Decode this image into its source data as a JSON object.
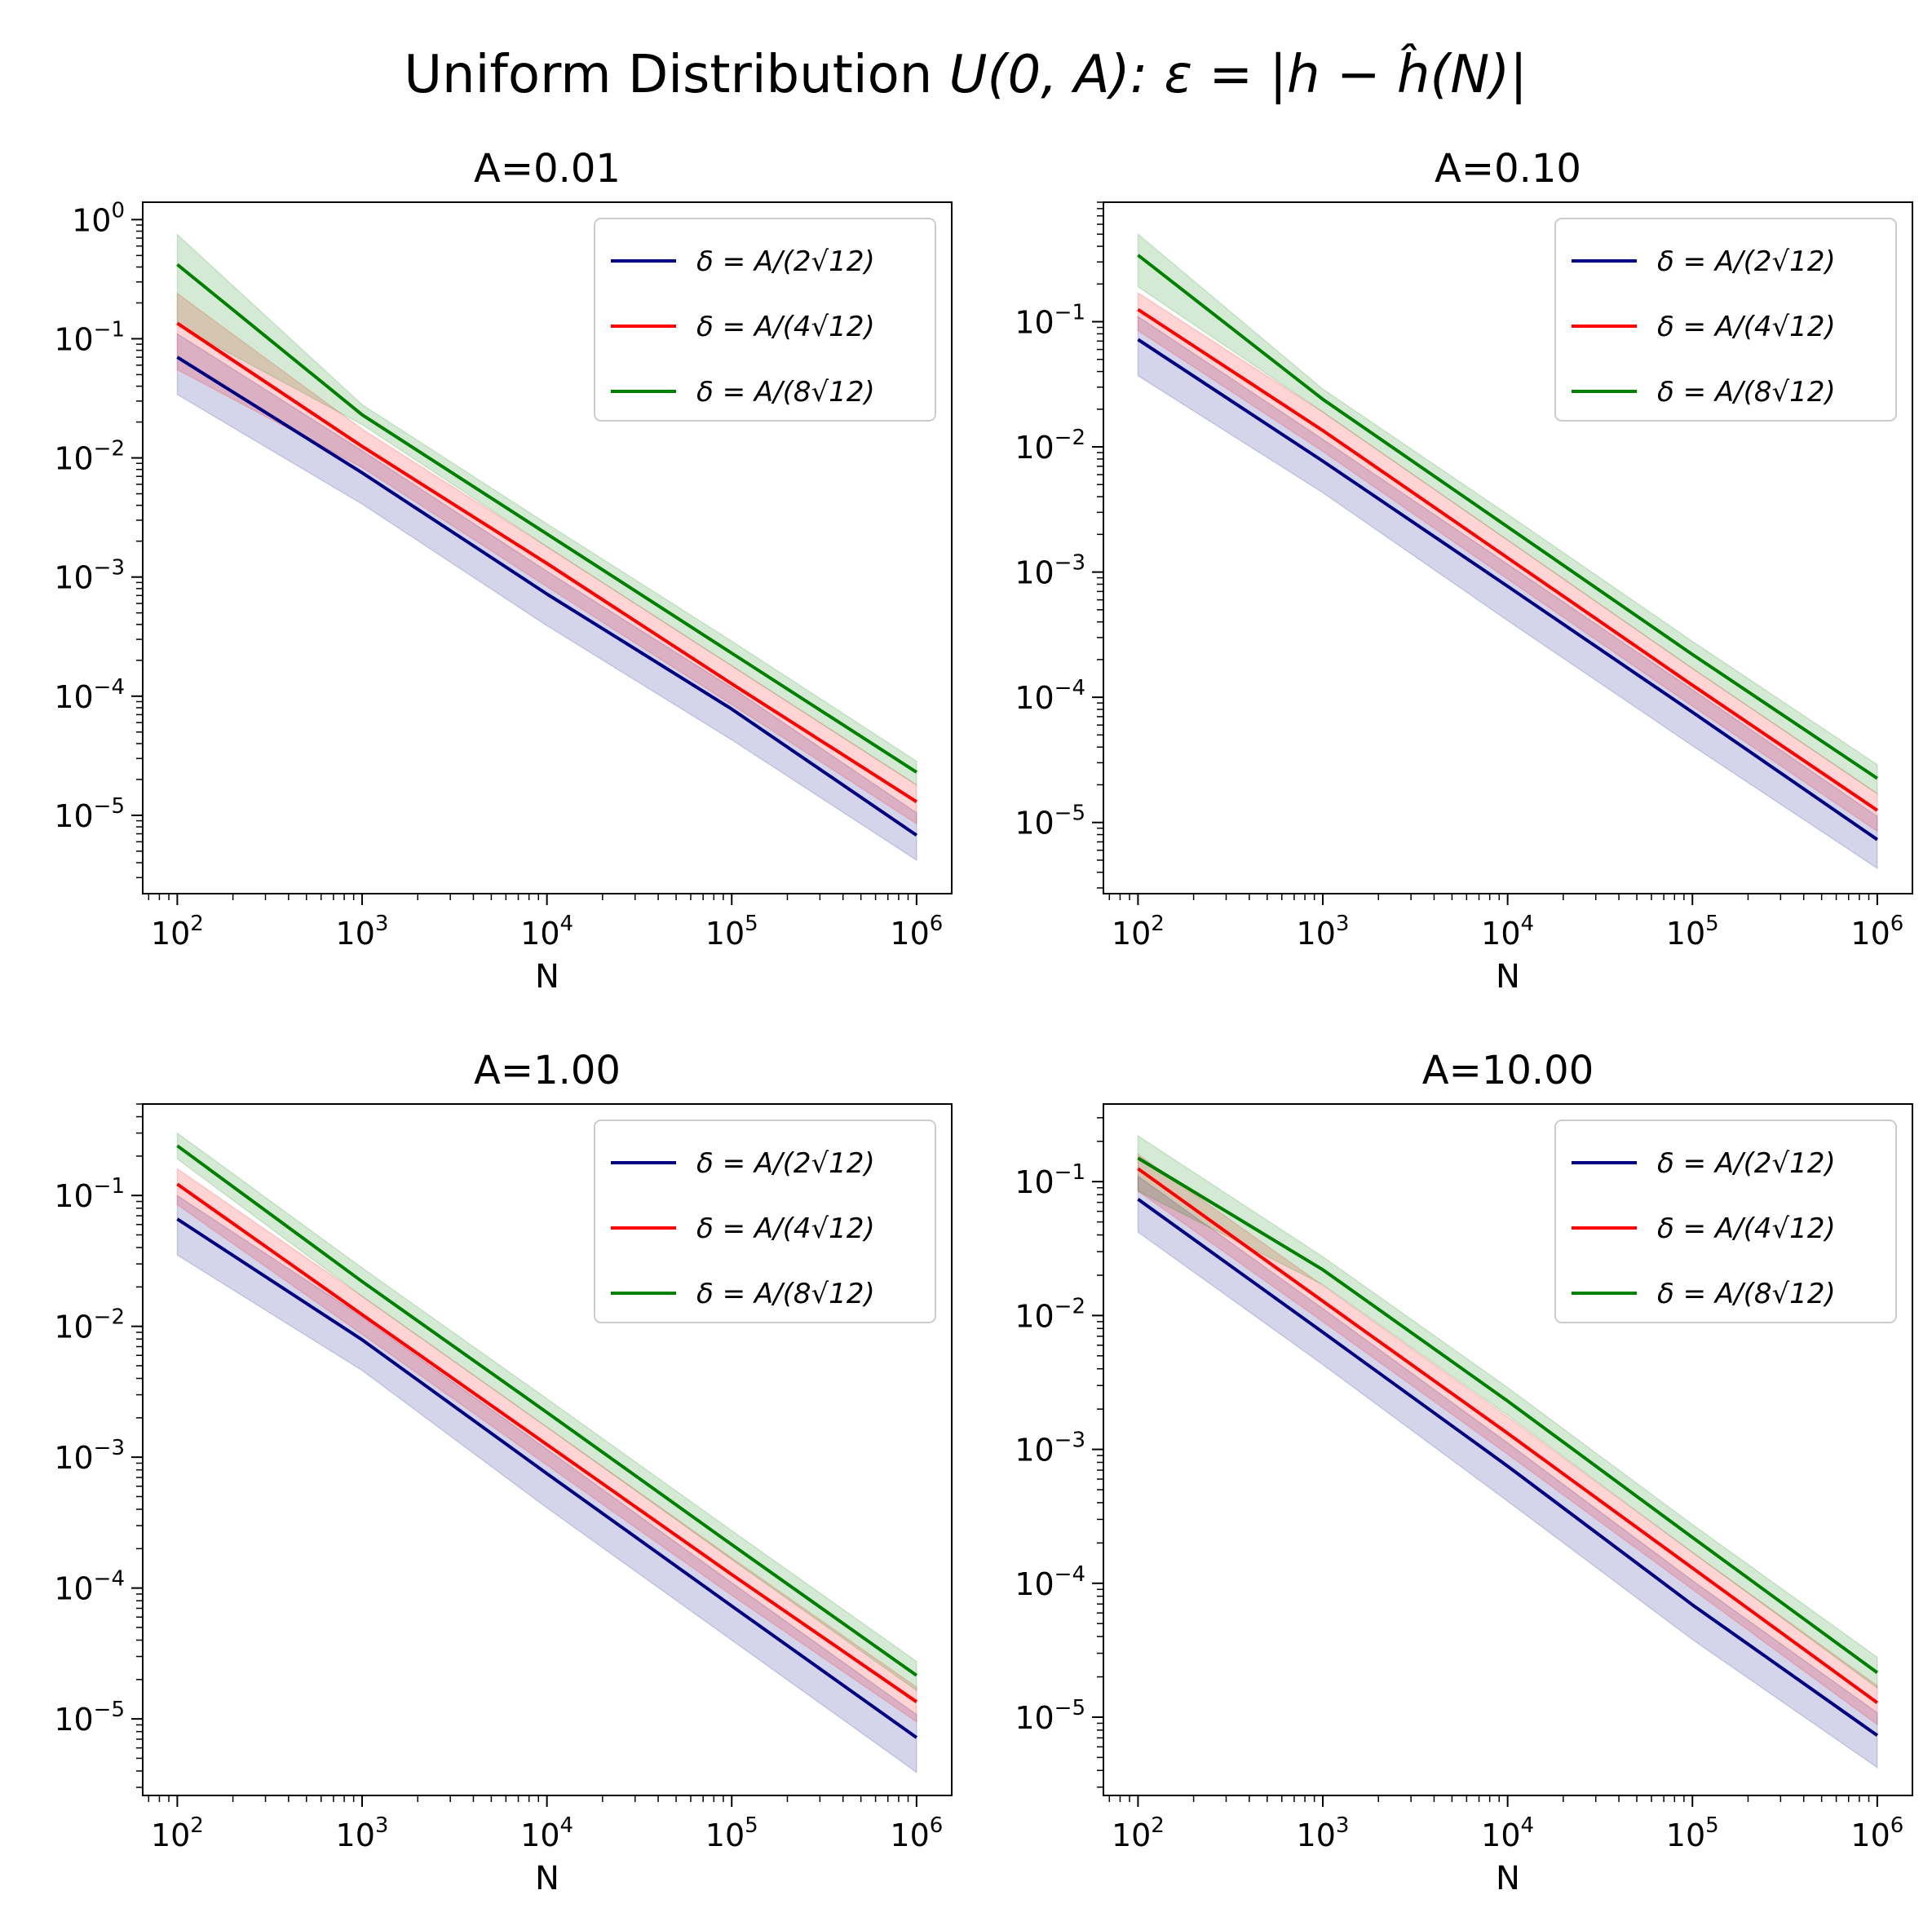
{
  "figure": {
    "suptitle_prefix": "Uniform Distribution ",
    "suptitle_math": "U(0, A): ε = |h − ĥ(N)|"
  },
  "legend_entries": [
    "δ = A/(2√12)",
    "δ = A/(4√12)",
    "δ = A/(8√12)"
  ],
  "colors": {
    "blue": "#000080",
    "red": "#ff0000",
    "green": "#008000"
  },
  "chart_data": [
    {
      "type": "line",
      "title": "A=0.01",
      "xlabel": "N",
      "ylabel": "",
      "xscale": "log",
      "yscale": "log",
      "xlim": [
        65,
        1550000
      ],
      "ylim": [
        2.2e-06,
        1.4
      ],
      "xticks": [
        100,
        1000,
        10000,
        100000,
        1000000
      ],
      "xtick_labels": [
        {
          "base": "10",
          "exp": "2"
        },
        {
          "base": "10",
          "exp": "3"
        },
        {
          "base": "10",
          "exp": "4"
        },
        {
          "base": "10",
          "exp": "5"
        },
        {
          "base": "10",
          "exp": "6"
        }
      ],
      "yticks": [
        1e-05,
        0.0001,
        0.001,
        0.01,
        0.1,
        1
      ],
      "ytick_labels": [
        {
          "base": "10",
          "exp": "−5"
        },
        {
          "base": "10",
          "exp": "−4"
        },
        {
          "base": "10",
          "exp": "−3"
        },
        {
          "base": "10",
          "exp": "−2"
        },
        {
          "base": "10",
          "exp": "−1"
        },
        {
          "base": "10",
          "exp": "0"
        }
      ],
      "legend_position": "top-right",
      "x": [
        100,
        1000,
        10000,
        100000,
        1000000
      ],
      "series": [
        {
          "name": "δ = A/(2√12)",
          "color": "#000080",
          "values": [
            0.07,
            0.0075,
            0.00072,
            7.8e-05,
            6.8e-06
          ],
          "lower": [
            0.034,
            0.0041,
            0.00039,
            4.3e-05,
            4.2e-06
          ],
          "upper": [
            0.11,
            0.0115,
            0.00112,
            0.000118,
            1.05e-05
          ]
        },
        {
          "name": "δ = A/(4√12)",
          "color": "#ff0000",
          "values": [
            0.135,
            0.0125,
            0.0013,
            0.000127,
            1.3e-05
          ],
          "lower": [
            0.055,
            0.0083,
            0.00083,
            8.5e-05,
            8.5e-06
          ],
          "upper": [
            0.24,
            0.0175,
            0.0018,
            0.00018,
            1.8e-05
          ]
        },
        {
          "name": "δ = A/(8√12)",
          "color": "#008000",
          "values": [
            0.42,
            0.023,
            0.0023,
            0.00023,
            2.3e-05
          ],
          "lower": [
            0.13,
            0.019,
            0.0018,
            0.00018,
            1.8e-05
          ],
          "upper": [
            0.75,
            0.028,
            0.0028,
            0.00029,
            2.85e-05
          ]
        }
      ]
    },
    {
      "type": "line",
      "title": "A=0.10",
      "xlabel": "N",
      "ylabel": "",
      "xscale": "log",
      "yscale": "log",
      "xlim": [
        65,
        1550000
      ],
      "ylim": [
        2.7e-06,
        0.9
      ],
      "xticks": [
        100,
        1000,
        10000,
        100000,
        1000000
      ],
      "xtick_labels": [
        {
          "base": "10",
          "exp": "2"
        },
        {
          "base": "10",
          "exp": "3"
        },
        {
          "base": "10",
          "exp": "4"
        },
        {
          "base": "10",
          "exp": "5"
        },
        {
          "base": "10",
          "exp": "6"
        }
      ],
      "yticks": [
        1e-05,
        0.0001,
        0.001,
        0.01,
        0.1
      ],
      "ytick_labels": [
        {
          "base": "10",
          "exp": "−5"
        },
        {
          "base": "10",
          "exp": "−4"
        },
        {
          "base": "10",
          "exp": "−3"
        },
        {
          "base": "10",
          "exp": "−2"
        },
        {
          "base": "10",
          "exp": "−1"
        }
      ],
      "legend_position": "top-right",
      "x": [
        100,
        1000,
        10000,
        100000,
        1000000
      ],
      "series": [
        {
          "name": "δ = A/(2√12)",
          "color": "#000080",
          "values": [
            0.072,
            0.0077,
            0.00077,
            7.6e-05,
            7.3e-06
          ],
          "lower": [
            0.037,
            0.0043,
            0.00041,
            4.1e-05,
            4.3e-06
          ],
          "upper": [
            0.11,
            0.0115,
            0.00116,
            0.000115,
            1.12e-05
          ]
        },
        {
          "name": "δ = A/(4√12)",
          "color": "#ff0000",
          "values": [
            0.125,
            0.0135,
            0.0013,
            0.000125,
            1.25e-05
          ],
          "lower": [
            0.085,
            0.0092,
            0.00088,
            8.5e-05,
            8.5e-06
          ],
          "upper": [
            0.17,
            0.019,
            0.0018,
            0.00017,
            1.7e-05
          ]
        },
        {
          "name": "δ = A/(8√12)",
          "color": "#008000",
          "values": [
            0.34,
            0.024,
            0.0023,
            0.00022,
            2.25e-05
          ],
          "lower": [
            0.19,
            0.019,
            0.0018,
            0.00017,
            1.7e-05
          ],
          "upper": [
            0.5,
            0.029,
            0.0029,
            0.00028,
            2.9e-05
          ]
        }
      ]
    },
    {
      "type": "line",
      "title": "A=1.00",
      "xlabel": "N",
      "ylabel": "",
      "xscale": "log",
      "yscale": "log",
      "xlim": [
        65,
        1550000
      ],
      "ylim": [
        2.6e-06,
        0.5
      ],
      "xticks": [
        100,
        1000,
        10000,
        100000,
        1000000
      ],
      "xtick_labels": [
        {
          "base": "10",
          "exp": "2"
        },
        {
          "base": "10",
          "exp": "3"
        },
        {
          "base": "10",
          "exp": "4"
        },
        {
          "base": "10",
          "exp": "5"
        },
        {
          "base": "10",
          "exp": "6"
        }
      ],
      "yticks": [
        1e-05,
        0.0001,
        0.001,
        0.01,
        0.1
      ],
      "ytick_labels": [
        {
          "base": "10",
          "exp": "−5"
        },
        {
          "base": "10",
          "exp": "−4"
        },
        {
          "base": "10",
          "exp": "−3"
        },
        {
          "base": "10",
          "exp": "−2"
        },
        {
          "base": "10",
          "exp": "−1"
        }
      ],
      "legend_position": "top-right",
      "x": [
        100,
        1000,
        10000,
        100000,
        1000000
      ],
      "series": [
        {
          "name": "δ = A/(2√12)",
          "color": "#000080",
          "values": [
            0.066,
            0.0079,
            0.00075,
            7.3e-05,
            7.2e-06
          ],
          "lower": [
            0.035,
            0.0046,
            0.00041,
            4e-05,
            3.9e-06
          ],
          "upper": [
            0.1,
            0.0118,
            0.00115,
            0.00011,
            1.08e-05
          ]
        },
        {
          "name": "δ = A/(4√12)",
          "color": "#ff0000",
          "values": [
            0.122,
            0.0123,
            0.00125,
            0.000127,
            1.35e-05
          ],
          "lower": [
            0.085,
            0.0087,
            0.00087,
            8.8e-05,
            9.5e-06
          ],
          "upper": [
            0.16,
            0.017,
            0.0017,
            0.00017,
            1.75e-05
          ]
        },
        {
          "name": "δ = A/(8√12)",
          "color": "#008000",
          "values": [
            0.24,
            0.022,
            0.0022,
            0.000215,
            2.15e-05
          ],
          "lower": [
            0.19,
            0.017,
            0.0017,
            0.000165,
            1.65e-05
          ],
          "upper": [
            0.3,
            0.028,
            0.0028,
            0.000275,
            2.75e-05
          ]
        }
      ]
    },
    {
      "type": "line",
      "title": "A=10.00",
      "xlabel": "N",
      "ylabel": "",
      "xscale": "log",
      "yscale": "log",
      "xlim": [
        65,
        1550000
      ],
      "ylim": [
        2.6e-06,
        0.38
      ],
      "xticks": [
        100,
        1000,
        10000,
        100000,
        1000000
      ],
      "xtick_labels": [
        {
          "base": "10",
          "exp": "2"
        },
        {
          "base": "10",
          "exp": "3"
        },
        {
          "base": "10",
          "exp": "4"
        },
        {
          "base": "10",
          "exp": "5"
        },
        {
          "base": "10",
          "exp": "6"
        }
      ],
      "yticks": [
        1e-05,
        0.0001,
        0.001,
        0.01,
        0.1
      ],
      "ytick_labels": [
        {
          "base": "10",
          "exp": "−5"
        },
        {
          "base": "10",
          "exp": "−4"
        },
        {
          "base": "10",
          "exp": "−3"
        },
        {
          "base": "10",
          "exp": "−2"
        },
        {
          "base": "10",
          "exp": "−1"
        }
      ],
      "legend_position": "top-right",
      "x": [
        100,
        1000,
        10000,
        100000,
        1000000
      ],
      "series": [
        {
          "name": "δ = A/(2√12)",
          "color": "#000080",
          "values": [
            0.074,
            0.0075,
            0.00075,
            6.9e-05,
            7.3e-06
          ],
          "lower": [
            0.042,
            0.0043,
            0.00041,
            3.8e-05,
            4.2e-06
          ],
          "upper": [
            0.11,
            0.0113,
            0.00112,
            0.000105,
            1.08e-05
          ]
        },
        {
          "name": "δ = A/(4√12)",
          "color": "#ff0000",
          "values": [
            0.125,
            0.0128,
            0.00132,
            0.00013,
            1.28e-05
          ],
          "lower": [
            0.085,
            0.009,
            0.00092,
            9e-05,
            8.8e-06
          ],
          "upper": [
            0.16,
            0.0168,
            0.00175,
            0.00017,
            1.72e-05
          ]
        },
        {
          "name": "δ = A/(8√12)",
          "color": "#008000",
          "values": [
            0.15,
            0.022,
            0.0023,
            0.00022,
            2.15e-05
          ],
          "lower": [
            0.085,
            0.017,
            0.0018,
            0.00017,
            1.65e-05
          ],
          "upper": [
            0.22,
            0.0275,
            0.0029,
            0.000275,
            2.8e-05
          ]
        }
      ]
    }
  ]
}
